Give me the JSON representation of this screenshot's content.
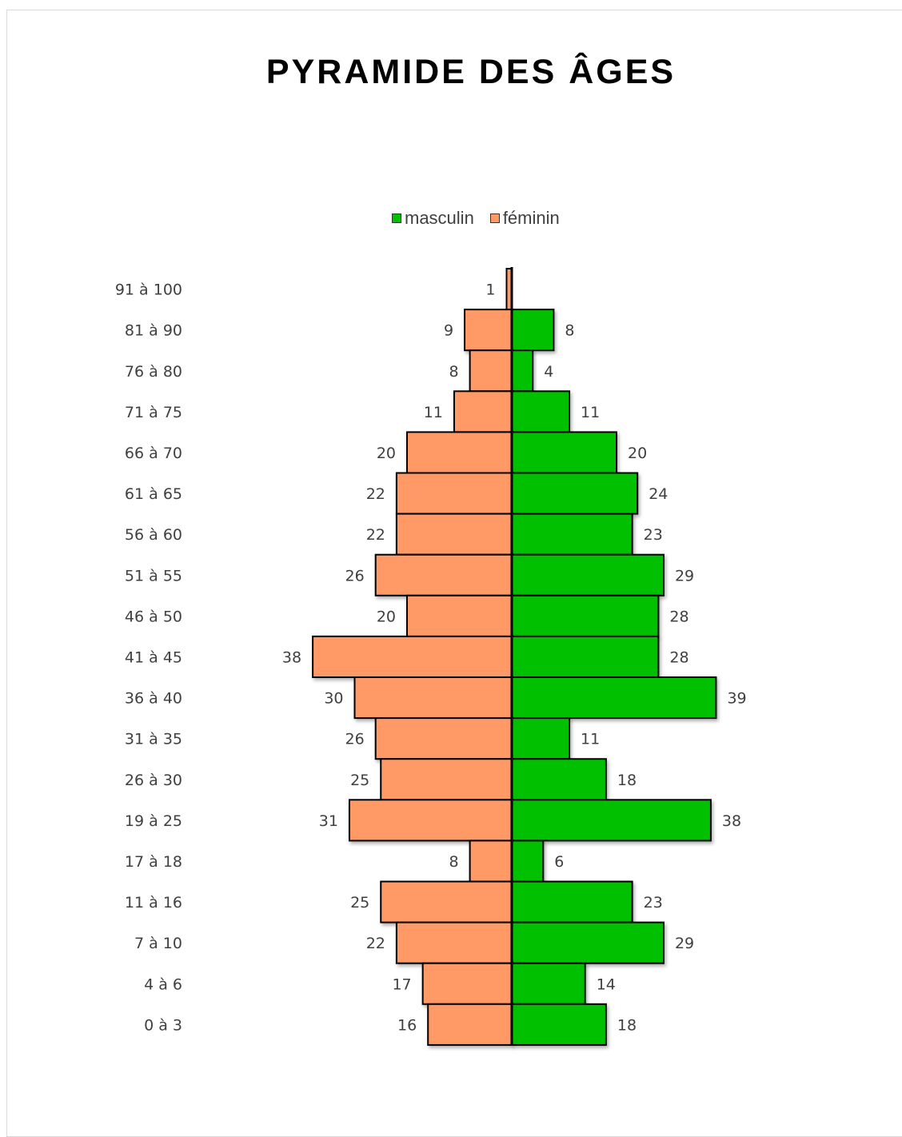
{
  "chart_data": {
    "type": "bar",
    "orientation": "horizontal-population-pyramid",
    "title": "PYRAMIDE DES ÂGES",
    "legend_position": "top",
    "categories": [
      "91 à 100",
      "81 à 90",
      "76 à 80",
      "71 à 75",
      "66 à 70",
      "61 à 65",
      "56 à 60",
      "51 à 55",
      "46 à 50",
      "41 à 45",
      "36 à 40",
      "31 à 35",
      "26 à 30",
      "19 à 25",
      "17 à 18",
      "11 à 16",
      "7 à 10",
      "4 à 6",
      "0 à 3"
    ],
    "series": [
      {
        "name": "masculin",
        "color": "#00c000",
        "values": [
          0,
          8,
          4,
          11,
          20,
          24,
          23,
          29,
          28,
          28,
          39,
          11,
          18,
          38,
          6,
          23,
          29,
          14,
          18
        ]
      },
      {
        "name": "féminin",
        "color": "#ff9966",
        "values": [
          1,
          9,
          8,
          11,
          20,
          22,
          22,
          26,
          20,
          38,
          30,
          26,
          25,
          31,
          8,
          25,
          22,
          17,
          16
        ]
      }
    ],
    "grid": false
  }
}
